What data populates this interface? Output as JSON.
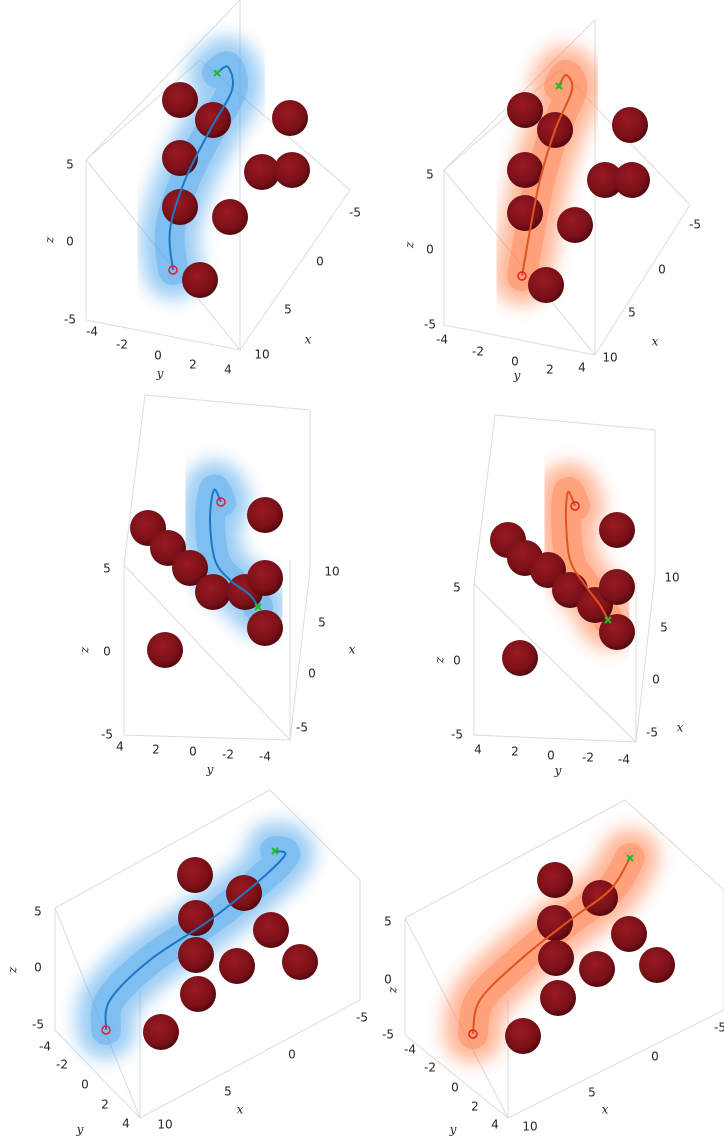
{
  "panels": [
    {
      "z_label": "z",
      "x_label": "x",
      "y_label": "y",
      "z_ticks": [
        "5",
        "0",
        "-5"
      ],
      "y_ticks": [
        "-4",
        "-2",
        "0",
        "2",
        "4"
      ],
      "x_ticks": [
        "-5",
        "0",
        "5",
        "10"
      ]
    },
    {
      "z_label": "z",
      "x_label": "x",
      "y_label": "y",
      "z_ticks": [
        "5",
        "0",
        "-5"
      ],
      "y_ticks": [
        "-4",
        "-2",
        "0",
        "2",
        "4"
      ],
      "x_ticks": [
        "-5",
        "0",
        "5",
        "10"
      ]
    },
    {
      "z_label": "z",
      "x_label": "x",
      "y_label": "y",
      "z_ticks": [
        "5",
        "0",
        "-5"
      ],
      "y_ticks": [
        "4",
        "2",
        "0",
        "-2",
        "-4"
      ],
      "x_ticks": [
        "10",
        "5",
        "0",
        "-5"
      ]
    },
    {
      "z_label": "z",
      "x_label": "x",
      "y_label": "y",
      "z_ticks": [
        "5",
        "0",
        "-5"
      ],
      "y_ticks": [
        "4",
        "2",
        "0",
        "-2",
        "-4"
      ],
      "x_ticks": [
        "10",
        "5",
        "0",
        "-5"
      ]
    },
    {
      "z_label": "z",
      "x_label": "x",
      "y_label": "y",
      "z_ticks": [
        "5",
        "0",
        "-5"
      ],
      "y_ticks": [
        "-4",
        "-2",
        "0",
        "2",
        "4"
      ],
      "x_ticks": [
        "-5",
        "0",
        "5",
        "10"
      ]
    },
    {
      "z_label": "z",
      "x_label": "x",
      "y_label": "y",
      "z_ticks": [
        "5",
        "0",
        "-5"
      ],
      "y_ticks": [
        "-4",
        "-2",
        "0",
        "2",
        "4"
      ],
      "x_ticks": [
        "-5",
        "0",
        "5",
        "10"
      ]
    }
  ]
}
